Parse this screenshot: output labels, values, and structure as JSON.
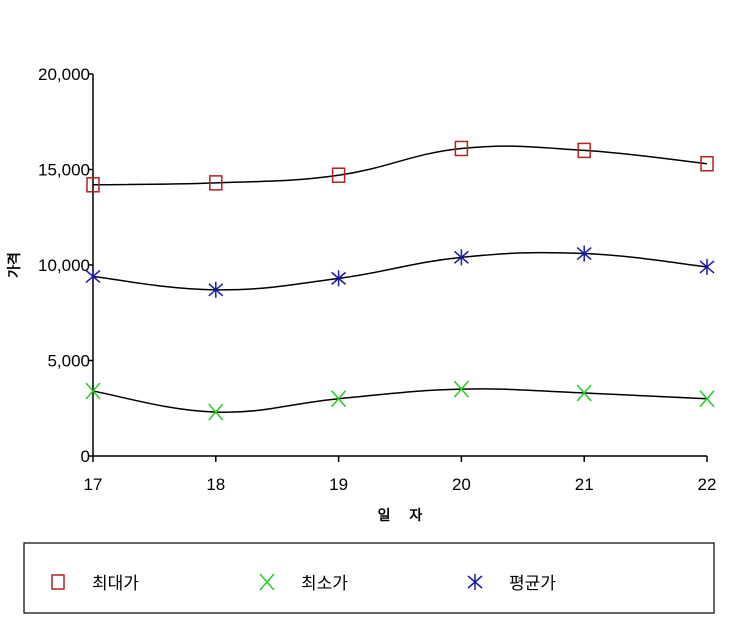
{
  "chart_data": {
    "type": "line",
    "title": "",
    "xlabel": "일 자",
    "ylabel": "가격",
    "x": [
      17,
      18,
      19,
      20,
      21,
      22
    ],
    "ylim": [
      0,
      20000
    ],
    "yticks": [
      0,
      5000,
      10000,
      15000,
      20000
    ],
    "ytick_labels": [
      "0",
      "5,000",
      "10,000",
      "15,000",
      "20,000"
    ],
    "xtick_labels": [
      "17",
      "18",
      "19",
      "20",
      "21",
      "22"
    ],
    "grid": false,
    "legend_position": "bottom",
    "series": [
      {
        "name": "최대가",
        "marker": "square",
        "color": "#b22222",
        "values": [
          14200,
          14300,
          14700,
          16100,
          16000,
          15300
        ]
      },
      {
        "name": "최소가",
        "marker": "x",
        "color": "#22cc22",
        "values": [
          3400,
          2300,
          3000,
          3500,
          3300,
          3000
        ]
      },
      {
        "name": "평균가",
        "marker": "asterisk",
        "color": "#1a1aa8",
        "values": [
          9400,
          8700,
          9300,
          10400,
          10600,
          9900
        ]
      }
    ]
  }
}
